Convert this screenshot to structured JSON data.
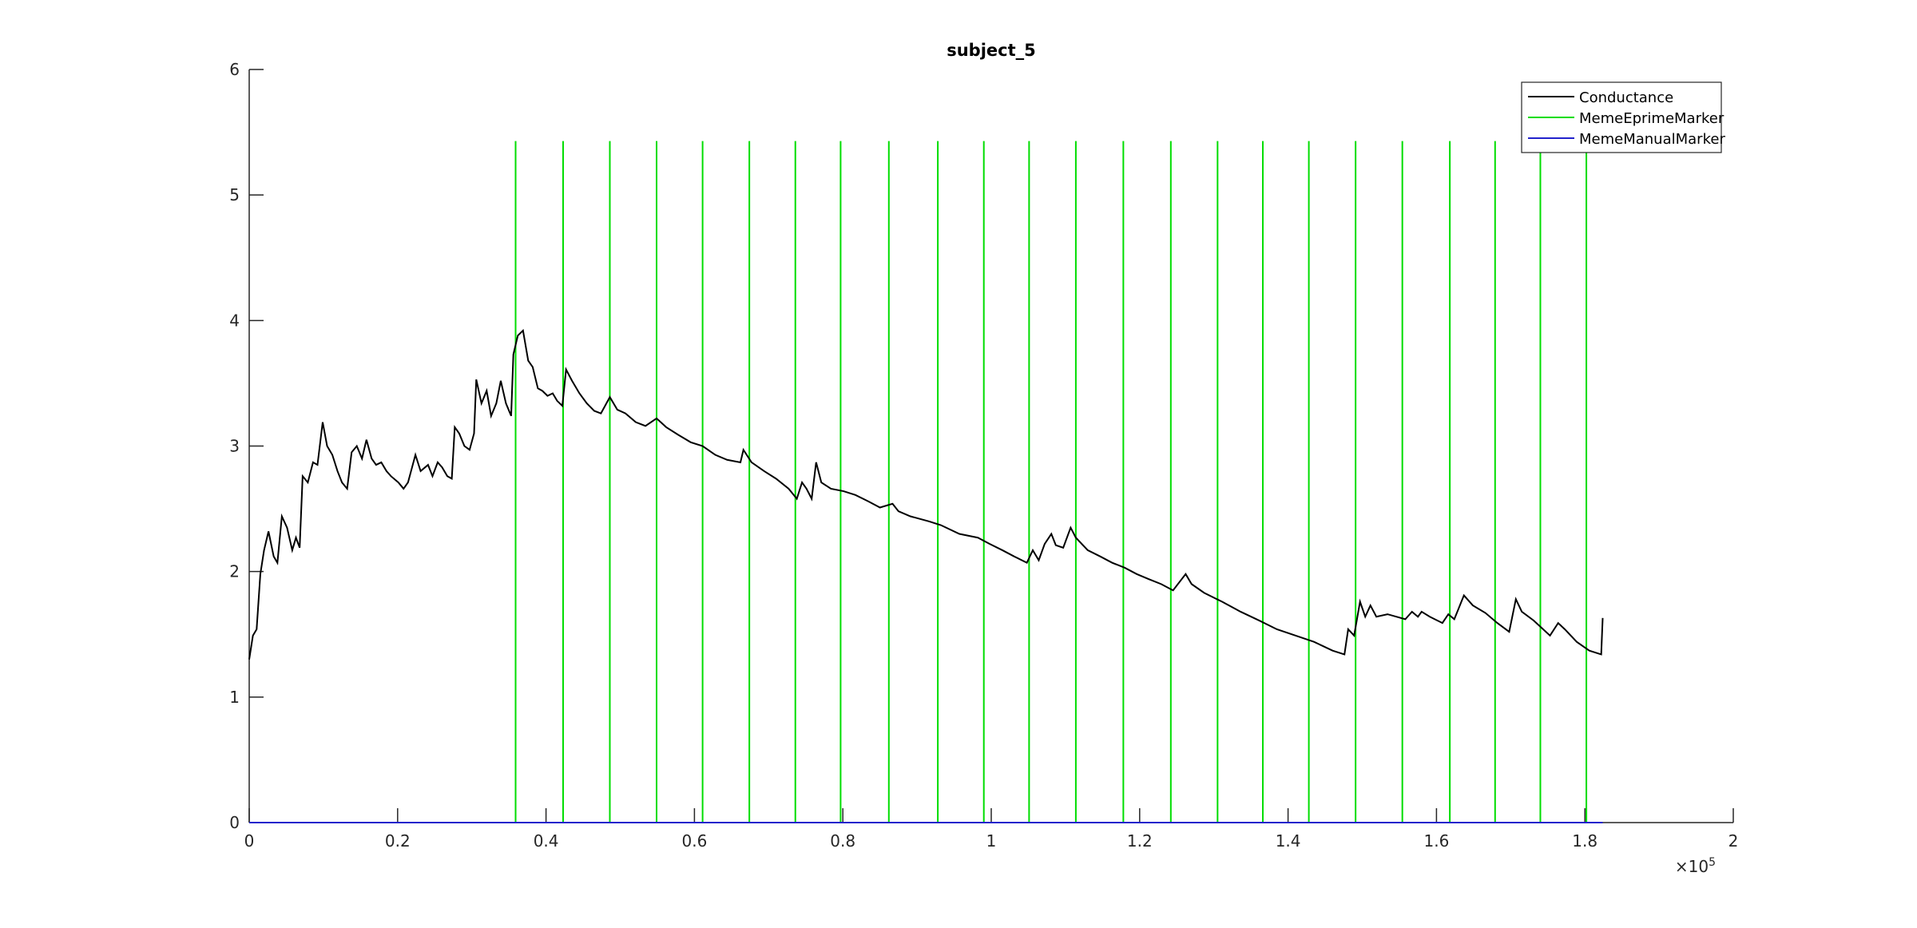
{
  "chart_data": {
    "type": "line",
    "title": "subject_5",
    "x_multiplier": "×10",
    "x_multiplier_exponent": "5",
    "xlim": [
      0,
      2
    ],
    "xticks": [
      0,
      0.2,
      0.4,
      0.6,
      0.8,
      1,
      1.2,
      1.4,
      1.6,
      1.8,
      2
    ],
    "ylim": [
      0,
      6
    ],
    "yticks": [
      0,
      1,
      2,
      3,
      4,
      5,
      6
    ],
    "legend": "northeast",
    "series": [
      {
        "name": "Conductance",
        "color": "#000000",
        "style": "line",
        "x": [
          0,
          0.005,
          0.01,
          0.015,
          0.02,
          0.026,
          0.033,
          0.038,
          0.044,
          0.051,
          0.058,
          0.063,
          0.068,
          0.072,
          0.079,
          0.086,
          0.092,
          0.099,
          0.105,
          0.112,
          0.119,
          0.125,
          0.132,
          0.138,
          0.145,
          0.152,
          0.158,
          0.165,
          0.171,
          0.178,
          0.185,
          0.191,
          0.201,
          0.208,
          0.214,
          0.224,
          0.231,
          0.241,
          0.247,
          0.254,
          0.26,
          0.267,
          0.273,
          0.277,
          0.283,
          0.29,
          0.297,
          0.303,
          0.306,
          0.313,
          0.32,
          0.326,
          0.333,
          0.339,
          0.346,
          0.353,
          0.356,
          0.362,
          0.369,
          0.376,
          0.382,
          0.389,
          0.395,
          0.402,
          0.409,
          0.415,
          0.422,
          0.427,
          0.435,
          0.445,
          0.455,
          0.465,
          0.474,
          0.486,
          0.496,
          0.507,
          0.521,
          0.534,
          0.549,
          0.562,
          0.578,
          0.595,
          0.611,
          0.628,
          0.644,
          0.662,
          0.666,
          0.677,
          0.694,
          0.71,
          0.727,
          0.738,
          0.745,
          0.751,
          0.758,
          0.764,
          0.771,
          0.784,
          0.801,
          0.817,
          0.834,
          0.85,
          0.867,
          0.875,
          0.891,
          0.916,
          0.932,
          0.957,
          0.982,
          0.998,
          1.015,
          1.031,
          1.048,
          1.056,
          1.064,
          1.072,
          1.081,
          1.087,
          1.097,
          1.107,
          1.114,
          1.13,
          1.147,
          1.163,
          1.18,
          1.196,
          1.212,
          1.229,
          1.245,
          1.262,
          1.27,
          1.287,
          1.311,
          1.336,
          1.361,
          1.385,
          1.41,
          1.435,
          1.46,
          1.476,
          1.481,
          1.489,
          1.497,
          1.504,
          1.511,
          1.519,
          1.534,
          1.558,
          1.567,
          1.575,
          1.58,
          1.591,
          1.608,
          1.616,
          1.624,
          1.637,
          1.649,
          1.666,
          1.682,
          1.698,
          1.707,
          1.715,
          1.731,
          1.753,
          1.764,
          1.773,
          1.789,
          1.806,
          1.822,
          1.824
        ],
        "values": [
          1.3,
          1.49,
          1.54,
          1.98,
          2.17,
          2.32,
          2.12,
          2.07,
          2.44,
          2.35,
          2.17,
          2.27,
          2.19,
          2.76,
          2.71,
          2.87,
          2.85,
          3.19,
          3.0,
          2.93,
          2.8,
          2.71,
          2.66,
          2.95,
          3.0,
          2.9,
          3.05,
          2.9,
          2.85,
          2.87,
          2.8,
          2.76,
          2.71,
          2.66,
          2.71,
          2.93,
          2.8,
          2.85,
          2.76,
          2.87,
          2.83,
          2.76,
          2.74,
          3.15,
          3.1,
          3.0,
          2.97,
          3.1,
          3.53,
          3.34,
          3.44,
          3.24,
          3.34,
          3.52,
          3.34,
          3.24,
          3.73,
          3.88,
          3.92,
          3.68,
          3.63,
          3.46,
          3.44,
          3.4,
          3.42,
          3.36,
          3.32,
          3.61,
          3.52,
          3.42,
          3.34,
          3.28,
          3.26,
          3.39,
          3.29,
          3.26,
          3.19,
          3.16,
          3.22,
          3.15,
          3.09,
          3.03,
          3.0,
          2.93,
          2.89,
          2.87,
          2.97,
          2.87,
          2.8,
          2.74,
          2.66,
          2.58,
          2.71,
          2.66,
          2.58,
          2.87,
          2.71,
          2.66,
          2.64,
          2.61,
          2.56,
          2.51,
          2.54,
          2.48,
          2.44,
          2.4,
          2.37,
          2.3,
          2.27,
          2.22,
          2.17,
          2.12,
          2.07,
          2.17,
          2.09,
          2.22,
          2.3,
          2.21,
          2.19,
          2.35,
          2.27,
          2.17,
          2.12,
          2.07,
          2.03,
          1.98,
          1.94,
          1.9,
          1.85,
          1.98,
          1.9,
          1.83,
          1.76,
          1.68,
          1.61,
          1.54,
          1.49,
          1.44,
          1.37,
          1.34,
          1.54,
          1.49,
          1.76,
          1.64,
          1.73,
          1.64,
          1.66,
          1.62,
          1.68,
          1.64,
          1.68,
          1.64,
          1.59,
          1.66,
          1.62,
          1.81,
          1.73,
          1.67,
          1.59,
          1.52,
          1.78,
          1.68,
          1.61,
          1.49,
          1.59,
          1.54,
          1.44,
          1.37,
          1.34,
          1.63
        ]
      },
      {
        "name": "MemeEprimeMarker",
        "color": "#00dd00",
        "style": "stem",
        "x": [
          0.359,
          0.423,
          0.486,
          0.549,
          0.611,
          0.674,
          0.736,
          0.797,
          0.862,
          0.928,
          0.99,
          1.051,
          1.114,
          1.178,
          1.242,
          1.305,
          1.366,
          1.428,
          1.491,
          1.554,
          1.618,
          1.679,
          1.74,
          1.802
        ],
        "values": [
          5.43,
          5.43,
          5.43,
          5.43,
          5.43,
          5.43,
          5.43,
          5.43,
          5.43,
          5.43,
          5.43,
          5.43,
          5.43,
          5.43,
          5.43,
          5.43,
          5.43,
          5.43,
          5.43,
          5.43,
          5.43,
          5.43,
          5.43,
          5.43
        ]
      },
      {
        "name": "MemeManualMarker",
        "color": "#2222cc",
        "style": "line",
        "x": [
          0,
          1.824
        ],
        "values": [
          0,
          0
        ]
      }
    ]
  }
}
